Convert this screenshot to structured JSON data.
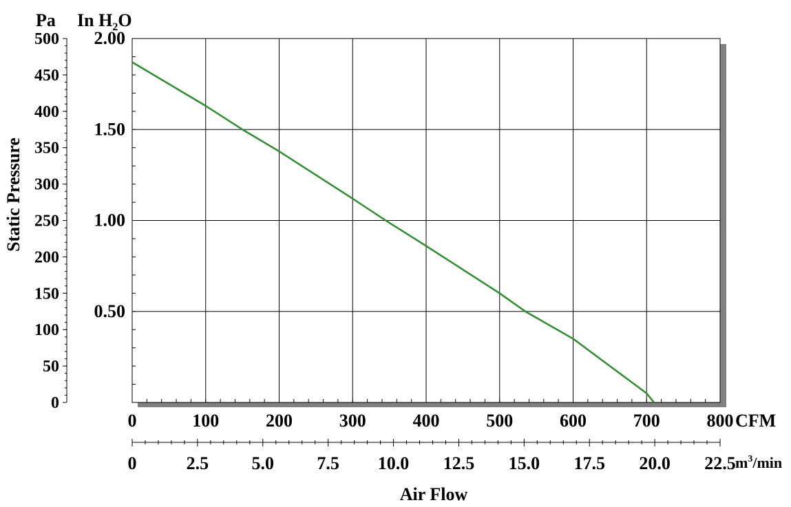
{
  "chart_data": {
    "type": "line",
    "title": "",
    "xlabel": "Air Flow",
    "ylabel": "Static Pressure",
    "y_units": {
      "left": "Pa",
      "right": "In H2O"
    },
    "x_units": {
      "primary": "CFM",
      "secondary": "m³/min"
    },
    "x_primary": {
      "range": [
        0,
        800
      ],
      "ticks": [
        "0",
        "100",
        "200",
        "300",
        "400",
        "500",
        "600",
        "700",
        "800"
      ]
    },
    "x_secondary": {
      "range": [
        0,
        22.5
      ],
      "ticks": [
        "0",
        "2.5",
        "5.0",
        "7.5",
        "10.0",
        "12.5",
        "15.0",
        "17.5",
        "20.0",
        "22.5"
      ]
    },
    "y_pa": {
      "range": [
        0,
        500
      ],
      "ticks": [
        "0",
        "50",
        "100",
        "150",
        "200",
        "250",
        "300",
        "350",
        "400",
        "450",
        "500"
      ]
    },
    "y_inh2o": {
      "range": [
        0,
        2.0
      ],
      "ticks": [
        "0.50",
        "1.00",
        "1.50",
        "2.00"
      ],
      "tick_values": [
        0.5,
        1.0,
        1.5,
        2.0
      ]
    },
    "grid": true,
    "series": [
      {
        "color": "#2e8b2e",
        "x": [
          0,
          100,
          150,
          200,
          300,
          345,
          400,
          500,
          535,
          600,
          700,
          710
        ],
        "y": [
          1.87,
          1.63,
          1.5,
          1.38,
          1.12,
          1.0,
          0.86,
          0.6,
          0.5,
          0.35,
          0.05,
          0.0
        ]
      }
    ]
  }
}
